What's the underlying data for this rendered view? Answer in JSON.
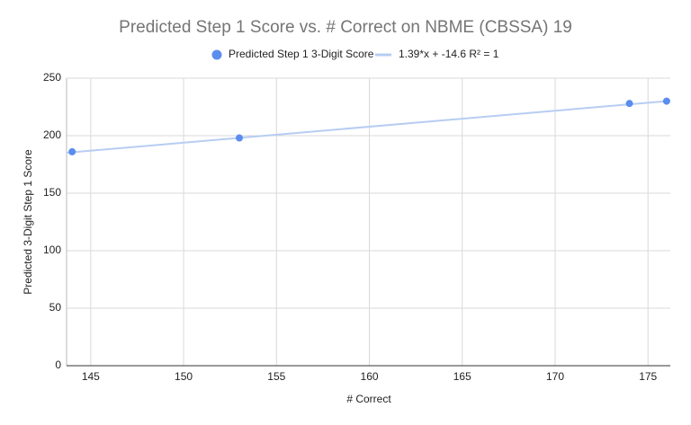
{
  "chart_data": {
    "type": "scatter",
    "title": "Predicted Step 1 Score vs. # Correct on NBME (CBSSA) 19",
    "x_label": "# Correct",
    "y_label": "Predicted 3-Digit Step 1 Score",
    "series": [
      {
        "name": "Predicted Step 1 3-Digit Score",
        "color": "#5b8def",
        "x": [
          144,
          153,
          174,
          176
        ],
        "values": [
          186,
          198,
          228,
          230
        ]
      }
    ],
    "trendline": {
      "name": "1.39*x + -14.6 R² = 1",
      "slope": 1.39,
      "intercept": -14.6,
      "color": "#b7cdf2"
    },
    "xlim": [
      143.7,
      176.2
    ],
    "xticks": [
      145,
      150,
      155,
      160,
      165,
      170,
      175
    ],
    "ylim": [
      0,
      250
    ],
    "yticks": [
      0,
      50,
      100,
      150,
      200,
      250
    ],
    "grid": true
  }
}
